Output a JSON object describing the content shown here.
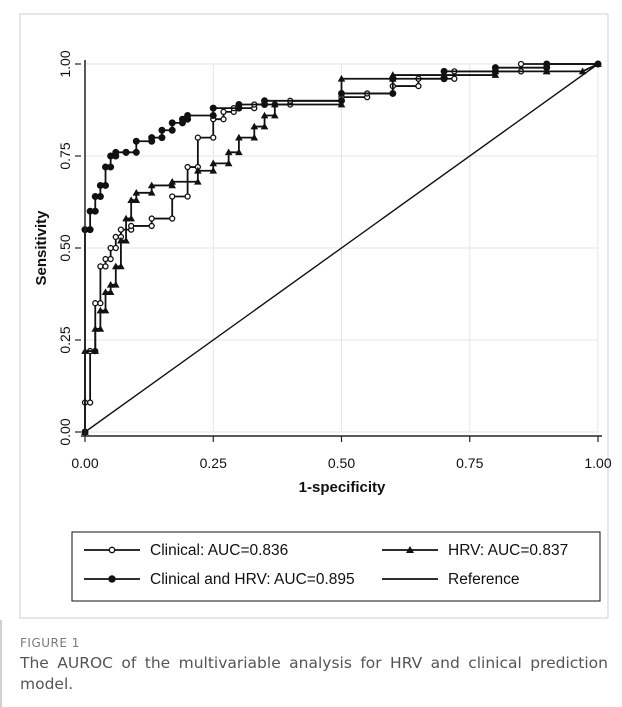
{
  "chart_data": {
    "type": "line",
    "title": "",
    "xlabel": "1-specificity",
    "ylabel": "Sensitivity",
    "xlim": [
      0,
      1
    ],
    "ylim": [
      0,
      1
    ],
    "xticks": [
      "0.00",
      "0.25",
      "0.50",
      "0.75",
      "1.00"
    ],
    "yticks": [
      "0.00",
      "0.25",
      "0.50",
      "0.75",
      "1.00"
    ],
    "grid": true,
    "legend_position": "bottom",
    "series": [
      {
        "name": "Clinical: AUC=0.836",
        "marker": "circle-open",
        "x": [
          0,
          0,
          0.01,
          0.01,
          0.02,
          0.02,
          0.03,
          0.03,
          0.04,
          0.04,
          0.05,
          0.05,
          0.06,
          0.06,
          0.07,
          0.07,
          0.09,
          0.09,
          0.13,
          0.13,
          0.17,
          0.17,
          0.2,
          0.2,
          0.22,
          0.22,
          0.25,
          0.25,
          0.27,
          0.27,
          0.29,
          0.29,
          0.33,
          0.33,
          0.37,
          0.37,
          0.4,
          0.4,
          0.5,
          0.5,
          0.55,
          0.55,
          0.6,
          0.6,
          0.65,
          0.65,
          0.72,
          0.72,
          0.85,
          0.85,
          1.0
        ],
        "y": [
          0,
          0.08,
          0.08,
          0.22,
          0.22,
          0.35,
          0.35,
          0.45,
          0.45,
          0.47,
          0.47,
          0.5,
          0.5,
          0.53,
          0.53,
          0.55,
          0.55,
          0.56,
          0.56,
          0.58,
          0.58,
          0.64,
          0.64,
          0.72,
          0.72,
          0.8,
          0.8,
          0.85,
          0.85,
          0.87,
          0.87,
          0.88,
          0.88,
          0.89,
          0.89,
          0.89,
          0.89,
          0.9,
          0.9,
          0.91,
          0.91,
          0.92,
          0.92,
          0.94,
          0.94,
          0.96,
          0.96,
          0.98,
          0.98,
          1.0,
          1.0
        ]
      },
      {
        "name": "HRV: AUC=0.837",
        "marker": "triangle",
        "x": [
          0,
          0,
          0.02,
          0.02,
          0.03,
          0.03,
          0.04,
          0.04,
          0.05,
          0.05,
          0.06,
          0.06,
          0.07,
          0.07,
          0.08,
          0.08,
          0.09,
          0.09,
          0.1,
          0.1,
          0.13,
          0.13,
          0.17,
          0.17,
          0.22,
          0.22,
          0.25,
          0.25,
          0.28,
          0.28,
          0.3,
          0.3,
          0.33,
          0.33,
          0.35,
          0.35,
          0.37,
          0.37,
          0.5,
          0.5,
          0.6,
          0.6,
          0.7,
          0.7,
          0.8,
          0.8,
          0.9,
          0.9,
          0.97,
          1.0
        ],
        "y": [
          0,
          0.22,
          0.22,
          0.28,
          0.28,
          0.33,
          0.33,
          0.38,
          0.38,
          0.4,
          0.4,
          0.45,
          0.45,
          0.52,
          0.52,
          0.58,
          0.58,
          0.63,
          0.63,
          0.65,
          0.65,
          0.67,
          0.67,
          0.68,
          0.68,
          0.71,
          0.71,
          0.73,
          0.73,
          0.76,
          0.76,
          0.8,
          0.8,
          0.83,
          0.83,
          0.86,
          0.86,
          0.89,
          0.89,
          0.96,
          0.96,
          0.97,
          0.97,
          0.97,
          0.97,
          0.98,
          0.98,
          0.98,
          0.98,
          1.0
        ]
      },
      {
        "name": "Clinical and HRV: AUC=0.895",
        "marker": "circle",
        "x": [
          0,
          0,
          0.01,
          0.01,
          0.02,
          0.02,
          0.03,
          0.03,
          0.04,
          0.04,
          0.05,
          0.05,
          0.06,
          0.06,
          0.08,
          0.08,
          0.1,
          0.1,
          0.13,
          0.13,
          0.15,
          0.15,
          0.17,
          0.17,
          0.19,
          0.19,
          0.2,
          0.2,
          0.25,
          0.25,
          0.3,
          0.3,
          0.35,
          0.35,
          0.5,
          0.5,
          0.6,
          0.6,
          0.7,
          0.7,
          0.8,
          0.8,
          0.9,
          0.9,
          1.0
        ],
        "y": [
          0,
          0.55,
          0.55,
          0.6,
          0.6,
          0.64,
          0.64,
          0.67,
          0.67,
          0.72,
          0.72,
          0.75,
          0.75,
          0.76,
          0.76,
          0.76,
          0.76,
          0.79,
          0.79,
          0.8,
          0.8,
          0.82,
          0.82,
          0.84,
          0.84,
          0.85,
          0.85,
          0.86,
          0.86,
          0.88,
          0.88,
          0.89,
          0.89,
          0.9,
          0.9,
          0.92,
          0.92,
          0.96,
          0.96,
          0.98,
          0.98,
          0.99,
          0.99,
          1.0,
          1.0
        ]
      },
      {
        "name": "Reference",
        "marker": "none",
        "x": [
          0,
          1
        ],
        "y": [
          0,
          1
        ]
      }
    ],
    "colors": {
      "line": "#111111",
      "grid": "#e6e6e6",
      "frame": "#222222"
    }
  },
  "figure": {
    "label": "FIGURE 1",
    "caption": "The AUROC of the multivariable analysis for HRV and clinical prediction model."
  }
}
